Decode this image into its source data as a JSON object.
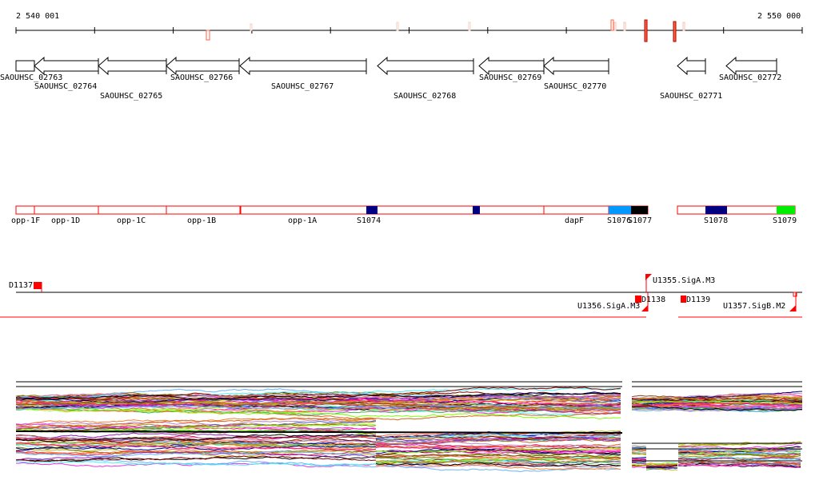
{
  "ruler": {
    "start_label": "2 540 001",
    "end_label": "2 550 000"
  },
  "genes": [
    {
      "name": "SAOUHSC_02763",
      "strand": "none"
    },
    {
      "name": "SAOUHSC_02764",
      "strand": "-"
    },
    {
      "name": "SAOUHSC_02765",
      "strand": "-"
    },
    {
      "name": "SAOUHSC_02766",
      "strand": "-"
    },
    {
      "name": "SAOUHSC_02767",
      "strand": "-"
    },
    {
      "name": "SAOUHSC_02768",
      "strand": "-"
    },
    {
      "name": "SAOUHSC_02769",
      "strand": "-"
    },
    {
      "name": "SAOUHSC_02770",
      "strand": "-"
    },
    {
      "name": "SAOUHSC_02771",
      "strand": "-"
    },
    {
      "name": "SAOUHSC_02772",
      "strand": "-"
    }
  ],
  "segments": [
    {
      "label": "opp-1F",
      "color": "#ffffff"
    },
    {
      "label": "opp-1D",
      "color": "#ffffff"
    },
    {
      "label": "opp-1C",
      "color": "#ffffff"
    },
    {
      "label": "opp-1B",
      "color": "#ffffff"
    },
    {
      "label": "opp-1A",
      "color": "#ffffff"
    },
    {
      "label": "S1074",
      "color": "#000080"
    },
    {
      "label": "",
      "color": "#000080"
    },
    {
      "label": "dapF",
      "color": "#ffffff"
    },
    {
      "label": "S1076",
      "color": "#0099ff"
    },
    {
      "label": "S1077",
      "color": "#000000"
    },
    {
      "label": "S1078",
      "color": "#000080"
    },
    {
      "label": "S1079",
      "color": "#00ee00"
    }
  ],
  "features": [
    {
      "label": "D1137"
    },
    {
      "label": "U1355.SigA.M3"
    },
    {
      "label": "D1138"
    },
    {
      "label": "U1356.SigA.M3"
    },
    {
      "label": "D1139"
    },
    {
      "label": "U1357.SigB.M2"
    }
  ],
  "colors": {
    "accent": "#ff0000",
    "segment_outline": "#ff0000"
  }
}
